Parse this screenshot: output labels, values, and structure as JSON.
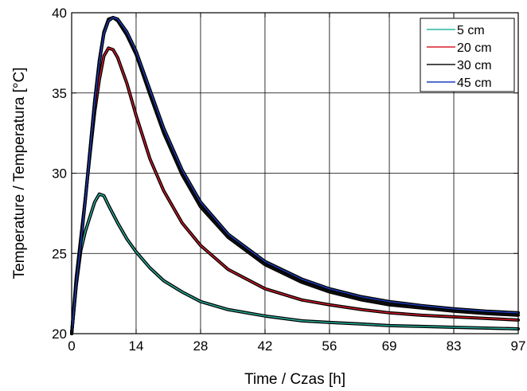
{
  "chart_data": {
    "type": "line",
    "xlabel": "Time / Czas [h]",
    "ylabel": "Temperature / Temperatura [°C]",
    "xlim": [
      0,
      97
    ],
    "ylim": [
      20,
      40
    ],
    "x_ticks": [
      0,
      14,
      28,
      42,
      56,
      69,
      83,
      97
    ],
    "y_ticks": [
      20,
      25,
      30,
      35,
      40
    ],
    "grid": true,
    "legend_position": "top-right",
    "series": [
      {
        "name": "5 cm",
        "color": "#2ab5a0",
        "x": [
          0,
          1,
          2,
          3,
          4,
          5,
          6,
          7,
          8,
          10,
          12,
          14,
          17,
          20,
          24,
          28,
          34,
          42,
          50,
          56,
          63,
          69,
          76,
          83,
          90,
          97
        ],
        "y": [
          20.0,
          23.0,
          25.2,
          26.4,
          27.3,
          28.2,
          28.7,
          28.6,
          28.0,
          26.9,
          25.9,
          25.1,
          24.1,
          23.3,
          22.6,
          22.0,
          21.5,
          21.1,
          20.8,
          20.7,
          20.6,
          20.5,
          20.45,
          20.4,
          20.35,
          20.3
        ]
      },
      {
        "name": "20 cm",
        "color": "#d81b2a",
        "x": [
          0,
          1,
          2,
          3,
          4,
          5,
          6,
          7,
          8,
          9,
          10,
          12,
          14,
          17,
          20,
          24,
          28,
          34,
          42,
          50,
          56,
          63,
          69,
          76,
          83,
          90,
          97
        ],
        "y": [
          20.0,
          23.5,
          26.0,
          28.5,
          31.2,
          33.8,
          35.8,
          37.3,
          37.8,
          37.7,
          37.2,
          35.6,
          33.6,
          30.9,
          28.9,
          26.9,
          25.5,
          24.0,
          22.8,
          22.1,
          21.8,
          21.5,
          21.3,
          21.15,
          21.05,
          20.95,
          20.85
        ]
      },
      {
        "name": "30 cm",
        "color": "#111111",
        "x": [
          0,
          1,
          2,
          3,
          4,
          5,
          6,
          7,
          8,
          9,
          10,
          12,
          14,
          17,
          20,
          24,
          28,
          34,
          42,
          50,
          56,
          63,
          69,
          76,
          83,
          90,
          97
        ],
        "y": [
          20.0,
          23.2,
          25.8,
          28.5,
          31.5,
          34.5,
          37.0,
          38.8,
          39.6,
          39.7,
          39.5,
          38.6,
          37.4,
          34.9,
          32.5,
          29.9,
          27.9,
          26.0,
          24.3,
          23.2,
          22.6,
          22.1,
          21.8,
          21.6,
          21.4,
          21.25,
          21.15
        ]
      },
      {
        "name": "45 cm",
        "color": "#1f3fbf",
        "x": [
          0,
          1,
          2,
          3,
          4,
          5,
          6,
          7,
          8,
          9,
          10,
          12,
          14,
          17,
          20,
          24,
          28,
          34,
          42,
          50,
          56,
          63,
          69,
          76,
          83,
          90,
          97
        ],
        "y": [
          20.0,
          23.1,
          25.7,
          28.4,
          31.4,
          34.4,
          36.9,
          38.7,
          39.5,
          39.7,
          39.6,
          38.8,
          37.6,
          35.2,
          32.8,
          30.2,
          28.2,
          26.2,
          24.5,
          23.4,
          22.8,
          22.3,
          22.0,
          21.75,
          21.55,
          21.4,
          21.3
        ]
      }
    ]
  }
}
